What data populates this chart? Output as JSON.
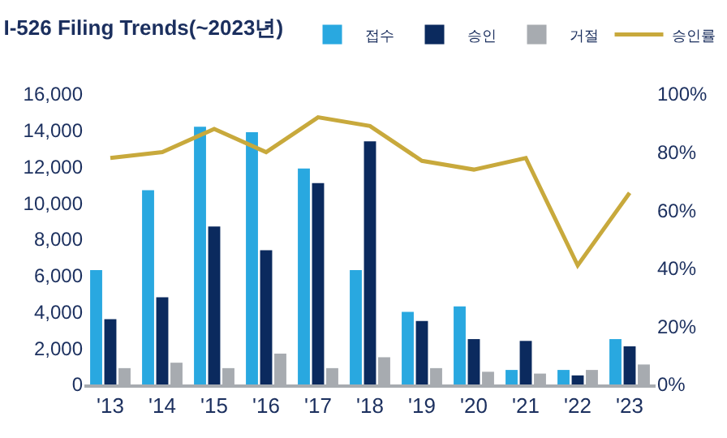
{
  "chart_data": {
    "type": "bar",
    "title": "I-526 Filing Trends(~2023년)",
    "categories": [
      "'13",
      "'14",
      "'15",
      "'16",
      "'17",
      "'18",
      "'19",
      "'20",
      "'21",
      "'22",
      "'23"
    ],
    "series": [
      {
        "name": "접수",
        "color": "#29a8e0",
        "values": [
          6300,
          10700,
          14200,
          13900,
          11900,
          6300,
          4000,
          4300,
          800,
          800,
          2500
        ]
      },
      {
        "name": "승인",
        "color": "#0b2a5e",
        "values": [
          3600,
          4800,
          8700,
          7400,
          11100,
          13400,
          3500,
          2500,
          2400,
          500,
          2100
        ]
      },
      {
        "name": "거절",
        "color": "#a7abb0",
        "values": [
          900,
          1200,
          900,
          1700,
          900,
          1500,
          900,
          700,
          600,
          800,
          1100
        ]
      },
      {
        "name": "승인률",
        "type": "line",
        "axis": "y2",
        "color": "#c8a93c",
        "values": [
          78,
          80,
          88,
          80,
          92,
          89,
          77,
          74,
          78,
          41,
          66
        ]
      }
    ],
    "ylim": [
      0,
      16000
    ],
    "yticks": [
      {
        "value": 0,
        "label": "0"
      },
      {
        "value": 2000,
        "label": "2,000"
      },
      {
        "value": 4000,
        "label": "4,000"
      },
      {
        "value": 6000,
        "label": "6,000"
      },
      {
        "value": 8000,
        "label": "8,000"
      },
      {
        "value": 10000,
        "label": "10,000"
      },
      {
        "value": 12000,
        "label": "12,000"
      },
      {
        "value": 14000,
        "label": "14,000"
      },
      {
        "value": 16000,
        "label": "16,000"
      }
    ],
    "y2lim": [
      0,
      100
    ],
    "y2ticks": [
      {
        "value": 0,
        "label": "0%"
      },
      {
        "value": 20,
        "label": "20%"
      },
      {
        "value": 40,
        "label": "40%"
      },
      {
        "value": 60,
        "label": "60%"
      },
      {
        "value": 80,
        "label": "80%"
      },
      {
        "value": 100,
        "label": "100%"
      }
    ],
    "legend": "top right",
    "marker": "none"
  }
}
